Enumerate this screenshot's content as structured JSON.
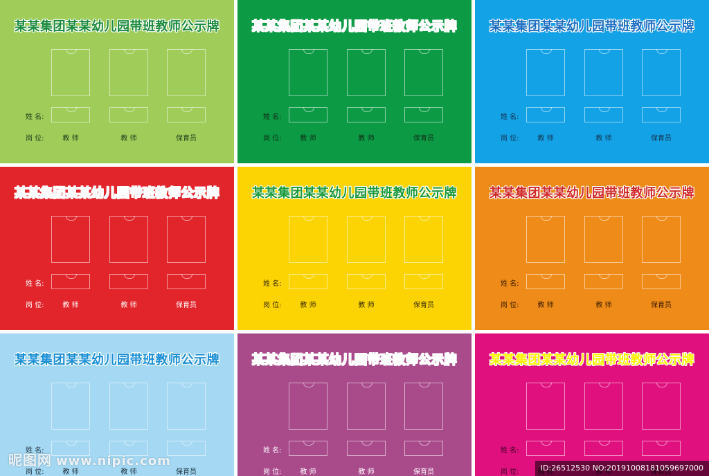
{
  "labels": {
    "name": "姓  名:",
    "post": "岗  位:"
  },
  "boards": [
    {
      "title": "某某集团某某幼儿园带班教师公示牌",
      "bg": "#a0cd59",
      "title_color": "#1a8a3c",
      "label_color": "#1f3f1f",
      "roles": [
        "教 师",
        "教 师",
        "保育员"
      ]
    },
    {
      "title": "某某集团某某幼儿园带班教师公示牌",
      "bg": "#0c9a45",
      "title_color": "#ffffff",
      "label_color": "#0f2f16",
      "roles": [
        "教 师",
        "教 师",
        "保育员"
      ]
    },
    {
      "title": "某某集团某某幼儿园带班教师公示牌",
      "bg": "#13a2e6",
      "title_color": "#1e6fc2",
      "label_color": "#143450",
      "roles": [
        "教 师",
        "教 师",
        "保育员"
      ]
    },
    {
      "title": "某某集团某某幼儿园带班教师公示牌",
      "bg": "#e2242b",
      "title_color": "#ffffff",
      "label_color": "#ffffff",
      "roles": [
        "教 师",
        "教 师",
        "保育员"
      ]
    },
    {
      "title": "某某集团某某幼儿园带班教师公示牌",
      "bg": "#fcd403",
      "title_color": "#1a9a3a",
      "label_color": "#3a2a00",
      "roles": [
        "教 师",
        "教 师",
        "保育员"
      ]
    },
    {
      "title": "某某集团某某幼儿园带班教师公示牌",
      "bg": "#ef8b19",
      "title_color": "#d12a2a",
      "label_color": "#3a1c00",
      "roles": [
        "教 师",
        "教 师",
        "保育员"
      ]
    },
    {
      "title": "某某集团某某幼儿园带班教师公示牌",
      "bg": "#a4d8f3",
      "title_color": "#1a8fd6",
      "label_color": "#1c2f3c",
      "roles": [
        "教 师",
        "教 师",
        "保育员"
      ]
    },
    {
      "title": "某某集团某某幼儿园带班教师公示牌",
      "bg": "#a94a8b",
      "title_color": "#ffffff",
      "label_color": "#ffffff",
      "roles": [
        "教 师",
        "教 师",
        "保育员"
      ]
    },
    {
      "title": "某某集团某某幼儿园带班教师公示牌",
      "bg": "#e0117f",
      "title_color": "#fff200",
      "label_color": "#3a0020",
      "roles": [
        "教 师",
        "教 师",
        "保育员"
      ]
    }
  ],
  "watermark": {
    "left_logo": "昵图网",
    "left_url": "www.nipic.com",
    "right_id": "ID:26512530 NO:20191008181059697000"
  }
}
